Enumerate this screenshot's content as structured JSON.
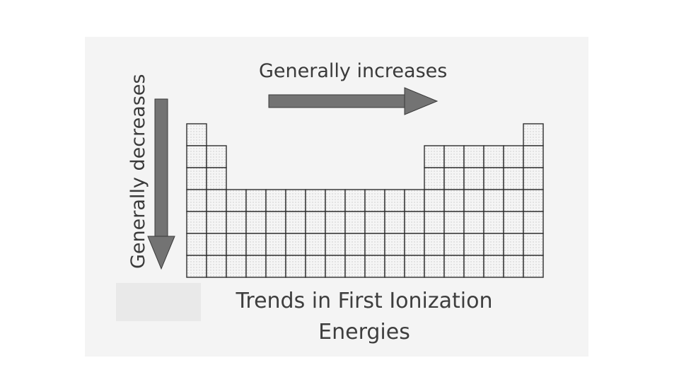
{
  "diagram": {
    "top_arrow_label": "Generally increases",
    "side_arrow_label": "Generally decreases",
    "caption_line1": "Trends in First Ionization",
    "caption_line2": "Energies"
  },
  "colors": {
    "arrow_fill": "#6f6f6f",
    "grid_line": "#2e2e2e",
    "cell_fill": "#f7f7f7",
    "text": "#3a3a3a"
  }
}
